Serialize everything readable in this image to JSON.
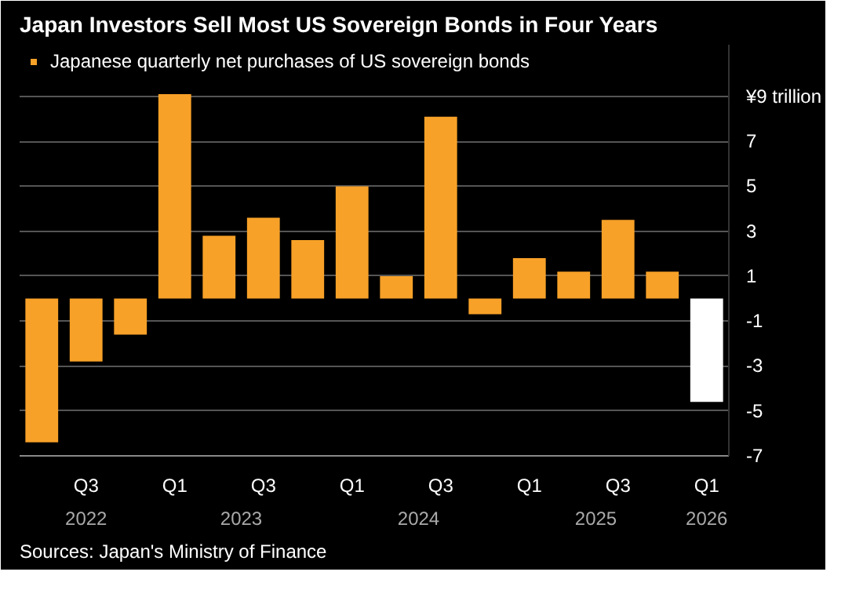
{
  "chart_data": {
    "type": "bar",
    "title": "Japan Investors Sell Most US Sovereign Bonds in Four Years",
    "categories": [
      null,
      "Q3",
      null,
      "Q1",
      null,
      "Q3",
      null,
      "Q1",
      null,
      "Q3",
      null,
      "Q1",
      null,
      "Q3",
      null,
      "Q1"
    ],
    "series": [
      {
        "name": "Japanese quarterly net purchases of US sovereign bonds",
        "color": "#f7a128",
        "colors": [
          "#f7a128",
          "#f7a128",
          "#f7a128",
          "#f7a128",
          "#f7a128",
          "#f7a128",
          "#f7a128",
          "#f7a128",
          "#f7a128",
          "#f7a128",
          "#f7a128",
          "#f7a128",
          "#f7a128",
          "#f7a128",
          "#f7a128",
          "#ffffff"
        ],
        "values": [
          -6.4,
          -2.8,
          -1.6,
          9.1,
          2.8,
          3.6,
          2.6,
          5.0,
          1.0,
          8.1,
          -0.7,
          1.8,
          1.2,
          3.5,
          1.2,
          -4.6
        ]
      }
    ],
    "ylim": [
      -7,
      11.3
    ],
    "yticks": [
      -7,
      -5,
      -3,
      -1,
      1,
      3,
      5,
      7,
      {
        "value": 9,
        "label": "¥9 trillion"
      }
    ],
    "grid": "y",
    "legend": "top left",
    "annotations": [
      "2022",
      "2023",
      "2024",
      "2025",
      "2026",
      "Sources: Japan's Ministry of Finance"
    ]
  }
}
